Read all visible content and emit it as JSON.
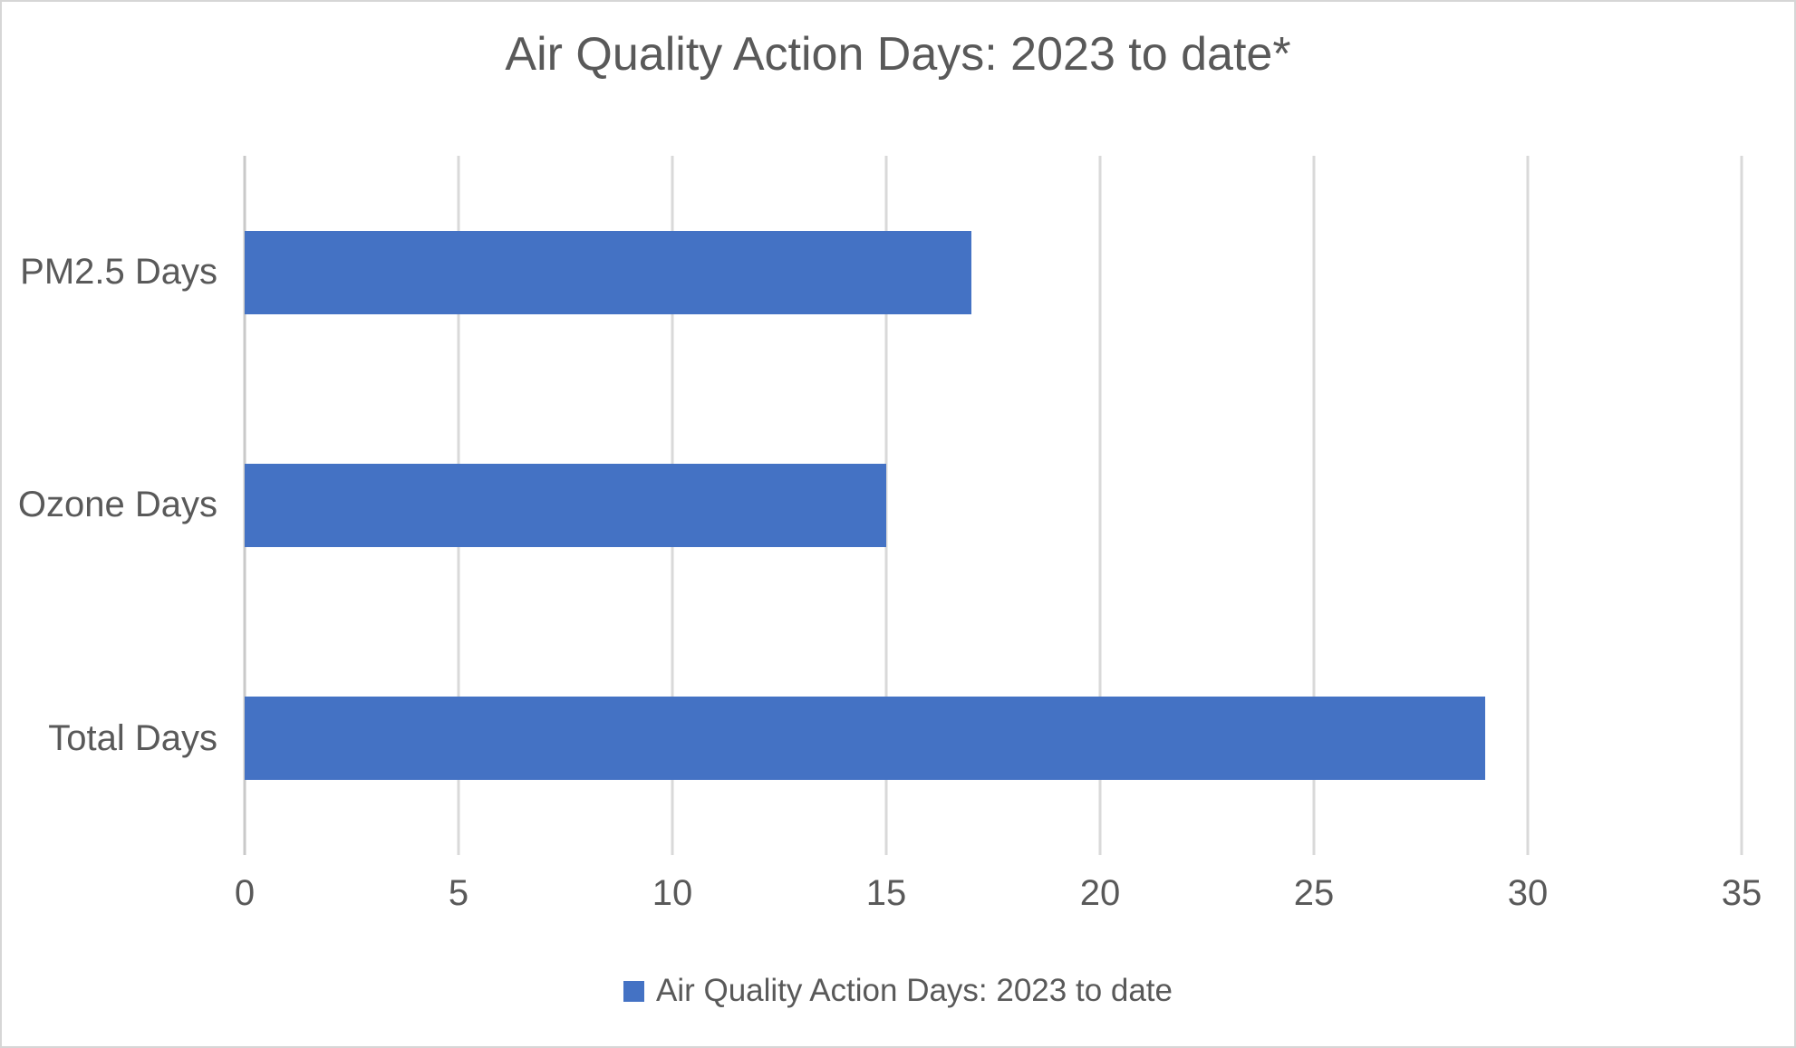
{
  "chart_data": {
    "type": "bar",
    "orientation": "horizontal",
    "title": "Air Quality Action Days: 2023 to date*",
    "categories": [
      "PM2.5 Days",
      "Ozone Days",
      "Total Days"
    ],
    "values": [
      17,
      15,
      29
    ],
    "series_name": "Air Quality Action Days: 2023 to date",
    "xlabel": "",
    "ylabel": "",
    "xlim": [
      0,
      35
    ],
    "xticks": [
      0,
      5,
      10,
      15,
      20,
      25,
      30,
      35
    ],
    "grid": "vertical-gridlines-on",
    "legend_position": "bottom-center",
    "bar_color": "#4472C4",
    "text_color": "#595959",
    "gridline_color": "#D9D9D9",
    "axis_line_color": "#C9C9C9"
  },
  "legend": {
    "marker_color": "#4472C4",
    "label": "Air Quality Action Days: 2023 to date"
  }
}
